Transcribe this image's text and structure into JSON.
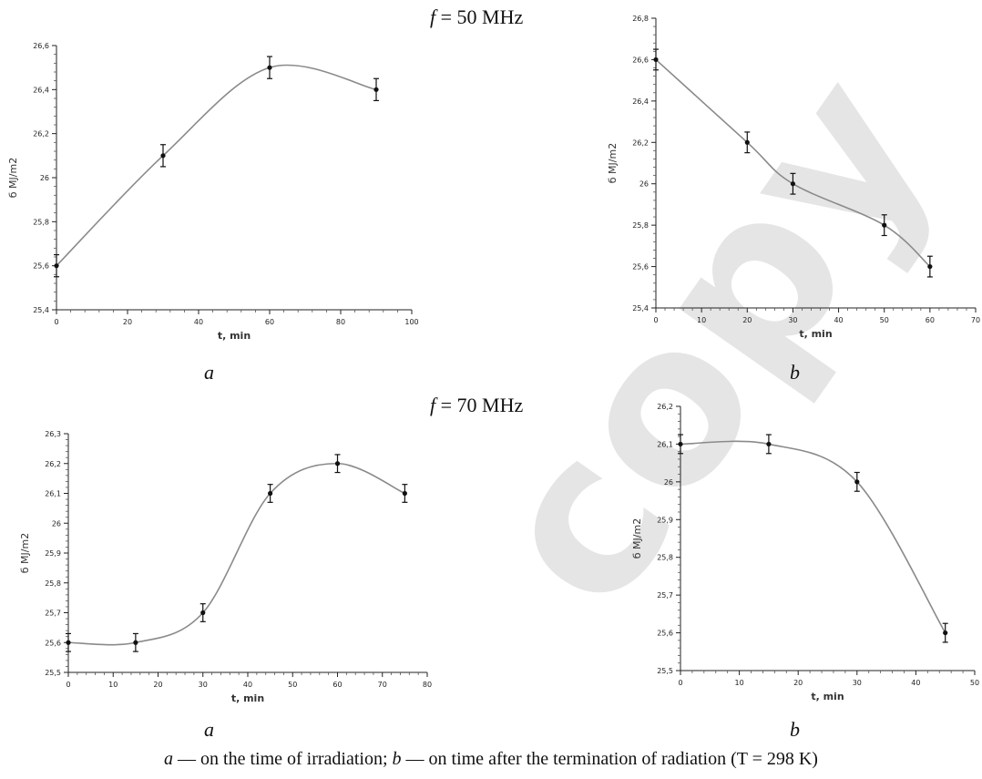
{
  "headings": {
    "top_symbol": "f",
    "top_text": " = 50 MHz",
    "bottom_symbol": "f",
    "bottom_text": " = 70 MHz"
  },
  "panel_letters": [
    "a",
    "b",
    "a",
    "b"
  ],
  "caption": {
    "a_letter": "a",
    "a_text": " — on the time of irradiation; ",
    "b_letter": "b",
    "b_text": " — on time after the termination of radiation (T = 298 K)"
  },
  "watermark_text": "copy",
  "chart_data": [
    {
      "type": "line",
      "xlabel": "t, min",
      "ylabel": "б MJ/m2",
      "xlim": [
        0,
        100
      ],
      "ylim": [
        25.4,
        26.6
      ],
      "xticks": [
        "0",
        "20",
        "40",
        "60",
        "80",
        "100"
      ],
      "yticks": [
        "25,4",
        "25,6",
        "25,8",
        "26",
        "26,2",
        "26,4",
        "26,6"
      ],
      "series": [
        {
          "x": [
            0,
            30,
            60,
            90
          ],
          "y": [
            25.6,
            26.1,
            26.5,
            26.4
          ],
          "error": 0.05
        }
      ]
    },
    {
      "type": "line",
      "xlabel": "t, min",
      "ylabel": "б MJ/m2",
      "xlim": [
        0,
        70
      ],
      "ylim": [
        25.4,
        26.8
      ],
      "xticks": [
        "0",
        "10",
        "20",
        "30",
        "40",
        "50",
        "60",
        "70"
      ],
      "yticks": [
        "25,4",
        "25,6",
        "25,8",
        "26",
        "26,2",
        "26,4",
        "26,6",
        "26,8"
      ],
      "series": [
        {
          "x": [
            0,
            20,
            30,
            50,
            60
          ],
          "y": [
            26.6,
            26.2,
            26.0,
            25.8,
            25.6
          ],
          "error": 0.05
        }
      ]
    },
    {
      "type": "line",
      "xlabel": "t, min",
      "ylabel": "б MJ/m2",
      "xlim": [
        0,
        80
      ],
      "ylim": [
        25.5,
        26.3
      ],
      "xticks": [
        "0",
        "10",
        "20",
        "30",
        "40",
        "50",
        "60",
        "70",
        "80"
      ],
      "yticks": [
        "25,5",
        "25,6",
        "25,7",
        "25,8",
        "25,9",
        "26",
        "26,1",
        "26,2",
        "26,3"
      ],
      "series": [
        {
          "x": [
            0,
            15,
            30,
            45,
            60,
            75
          ],
          "y": [
            25.6,
            25.6,
            25.7,
            26.1,
            26.2,
            26.1
          ],
          "error": 0.03
        }
      ]
    },
    {
      "type": "line",
      "xlabel": "t, min",
      "ylabel": "б MJ/m2",
      "xlim": [
        0,
        50
      ],
      "ylim": [
        25.5,
        26.2
      ],
      "xticks": [
        "0",
        "10",
        "20",
        "30",
        "40",
        "50"
      ],
      "yticks": [
        "25,5",
        "25,6",
        "25,7",
        "25,8",
        "25,9",
        "26",
        "26,1",
        "26,2"
      ],
      "series": [
        {
          "x": [
            0,
            15,
            30,
            45
          ],
          "y": [
            26.1,
            26.1,
            26.0,
            25.6
          ],
          "error": 0.025
        }
      ]
    }
  ]
}
